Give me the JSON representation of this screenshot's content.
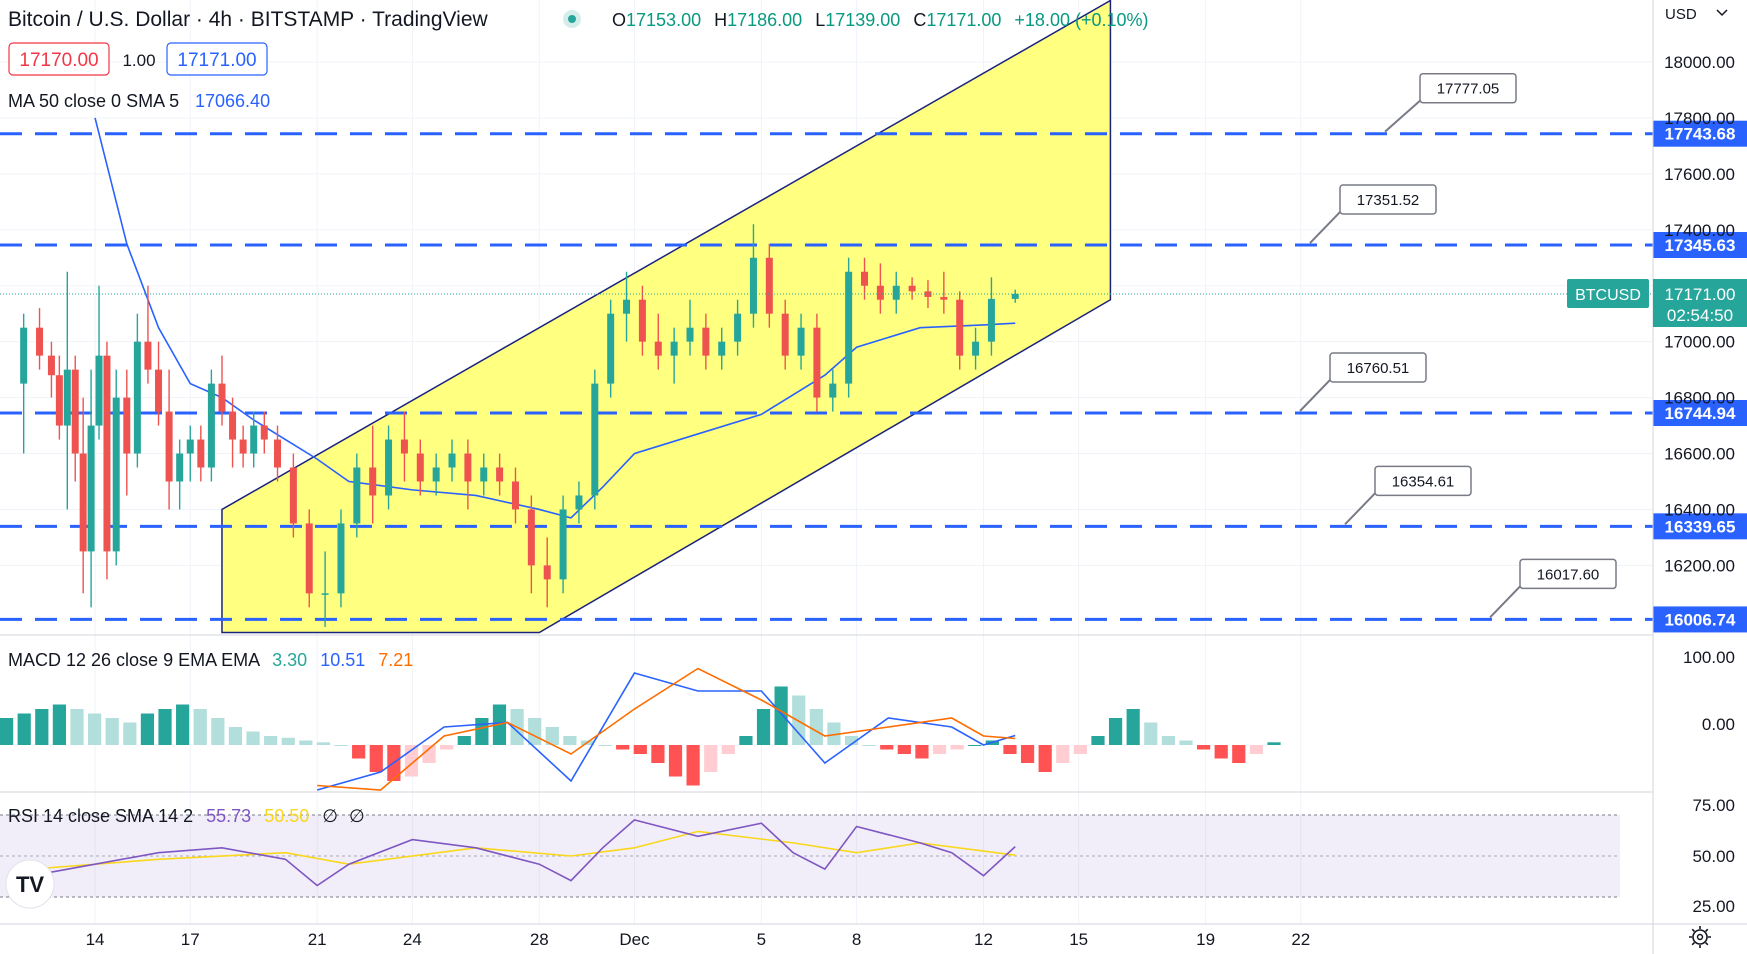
{
  "header": {
    "title": "Bitcoin / U.S. Dollar · 4h · BITSTAMP · TradingView",
    "ohlc": {
      "o_label": "O",
      "o": "17153.00",
      "h_label": "H",
      "h": "17186.00",
      "l_label": "L",
      "l": "17139.00",
      "c_label": "C",
      "c": "17171.00",
      "change": "+18.00 (+0.10%)"
    },
    "sell_price": "17170.00",
    "spread": "1.00",
    "buy_price": "17171.00",
    "currency": "USD",
    "currency_icon": "chevron-down-icon"
  },
  "indicators": {
    "ma": {
      "label": "MA 50 close 0 SMA 5",
      "value": "17066.40"
    },
    "macd": {
      "label": "MACD 12 26 close 9 EMA EMA",
      "hist": "3.30",
      "macd": "10.51",
      "signal": "7.21"
    },
    "rsi": {
      "label": "RSI 14 close SMA 14 2",
      "rsi": "55.73",
      "rsi_ma": "50.50",
      "extra1": "∅",
      "extra2": "∅"
    }
  },
  "price_axis": {
    "ticks": [
      "18000.00",
      "17800.00",
      "17600.00",
      "17400.00",
      "17200.00",
      "17000.00",
      "16800.00",
      "16600.00",
      "16400.00",
      "16200.00"
    ],
    "current_symbol": "BTCUSD",
    "current_price": "17171.00",
    "countdown": "02:54:50"
  },
  "macd_axis": {
    "ticks": [
      "100.00",
      "0.00"
    ]
  },
  "rsi_axis": {
    "ticks": [
      "75.00",
      "50.00",
      "25.00"
    ]
  },
  "time_axis": {
    "labels": [
      "14",
      "17",
      "21",
      "24",
      "28",
      "Dec",
      "5",
      "8",
      "12",
      "15",
      "19",
      "22"
    ]
  },
  "levels": [
    {
      "price": "17743.68",
      "annotation": "17777.05"
    },
    {
      "price": "17345.63",
      "annotation": "17351.52"
    },
    {
      "price": "16744.94",
      "annotation": "16760.51"
    },
    {
      "price": "16339.65",
      "annotation": "16354.61"
    },
    {
      "price": "16006.74",
      "annotation": "16017.60"
    }
  ],
  "colors": {
    "up": "#26a69a",
    "down": "#ef5350",
    "level": "#2962ff",
    "channel_fill": "#ffff80",
    "ma": "#2962ff",
    "macd": "#2962ff",
    "signal": "#ff6d00",
    "rsi": "#7e57c2",
    "rsi_ma": "#f9d71c"
  },
  "logo": "TV",
  "settings_icon": "gear-icon",
  "chart_data": {
    "type": "candlestick",
    "title": "Bitcoin / U.S. Dollar · 4h · BITSTAMP · TradingView",
    "ylim": [
      15960,
      18220
    ],
    "x_range": [
      "Nov 12",
      "Dec 23"
    ],
    "grid": true,
    "candles": [
      [
        "Nov 12",
        16850,
        17100,
        16600,
        17050
      ],
      [
        "Nov 12",
        17050,
        17120,
        16900,
        16950
      ],
      [
        "Nov 13",
        16950,
        17000,
        16800,
        16880
      ],
      [
        "Nov 13",
        16880,
        16950,
        16650,
        16700
      ],
      [
        "Nov 13",
        16700,
        17250,
        16400,
        16900
      ],
      [
        "Nov 13",
        16900,
        16950,
        16500,
        16600
      ],
      [
        "Nov 14",
        16600,
        16800,
        16100,
        16250
      ],
      [
        "Nov 14",
        16250,
        16900,
        16050,
        16700
      ],
      [
        "Nov 14",
        16700,
        17200,
        16650,
        16950
      ],
      [
        "Nov 14",
        16950,
        17000,
        16150,
        16250
      ],
      [
        "Nov 15",
        16250,
        16900,
        16200,
        16800
      ],
      [
        "Nov 15",
        16800,
        16900,
        16450,
        16600
      ],
      [
        "Nov 15",
        16600,
        17100,
        16550,
        17000
      ],
      [
        "Nov 16",
        17000,
        17200,
        16850,
        16900
      ],
      [
        "Nov 16",
        16900,
        17000,
        16700,
        16750
      ],
      [
        "Nov 16",
        16750,
        16900,
        16400,
        16500
      ],
      [
        "Nov 17",
        16500,
        16650,
        16400,
        16600
      ],
      [
        "Nov 17",
        16600,
        16700,
        16500,
        16650
      ],
      [
        "Nov 17",
        16650,
        16700,
        16500,
        16550
      ],
      [
        "Nov 18",
        16550,
        16900,
        16500,
        16850
      ],
      [
        "Nov 18",
        16850,
        16950,
        16700,
        16750
      ],
      [
        "Nov 18",
        16750,
        16800,
        16550,
        16650
      ],
      [
        "Nov 19",
        16650,
        16700,
        16550,
        16600
      ],
      [
        "Nov 19",
        16600,
        16750,
        16550,
        16700
      ],
      [
        "Nov 19",
        16700,
        16750,
        16600,
        16650
      ],
      [
        "Nov 20",
        16650,
        16700,
        16500,
        16550
      ],
      [
        "Nov 20",
        16550,
        16600,
        16300,
        16350
      ],
      [
        "Nov 21",
        16350,
        16400,
        16050,
        16100
      ],
      [
        "Nov 21",
        16100,
        16250,
        15980,
        16100
      ],
      [
        "Nov 22",
        16100,
        16400,
        16050,
        16350
      ],
      [
        "Nov 22",
        16350,
        16600,
        16300,
        16550
      ],
      [
        "Nov 23",
        16550,
        16700,
        16350,
        16450
      ],
      [
        "Nov 23",
        16450,
        16700,
        16400,
        16650
      ],
      [
        "Nov 24",
        16650,
        16750,
        16500,
        16600
      ],
      [
        "Nov 24",
        16600,
        16650,
        16450,
        16500
      ],
      [
        "Nov 25",
        16500,
        16600,
        16450,
        16550
      ],
      [
        "Nov 25",
        16550,
        16650,
        16500,
        16600
      ],
      [
        "Nov 26",
        16600,
        16650,
        16400,
        16500
      ],
      [
        "Nov 26",
        16500,
        16600,
        16450,
        16550
      ],
      [
        "Nov 27",
        16550,
        16600,
        16450,
        16500
      ],
      [
        "Nov 27",
        16500,
        16550,
        16350,
        16400
      ],
      [
        "Nov 28",
        16400,
        16450,
        16100,
        16200
      ],
      [
        "Nov 28",
        16200,
        16300,
        16050,
        16150
      ],
      [
        "Nov 29",
        16150,
        16450,
        16100,
        16400
      ],
      [
        "Nov 29",
        16400,
        16500,
        16350,
        16450
      ],
      [
        "Nov 30",
        16450,
        16900,
        16400,
        16850
      ],
      [
        "Nov 30",
        16850,
        17150,
        16800,
        17100
      ],
      [
        "Dec 1",
        17100,
        17250,
        17000,
        17150
      ],
      [
        "Dec 1",
        17150,
        17200,
        16950,
        17000
      ],
      [
        "Dec 2",
        17000,
        17100,
        16900,
        16950
      ],
      [
        "Dec 2",
        16950,
        17050,
        16850,
        17000
      ],
      [
        "Dec 3",
        17000,
        17150,
        16950,
        17050
      ],
      [
        "Dec 3",
        17050,
        17100,
        16900,
        16950
      ],
      [
        "Dec 4",
        16950,
        17050,
        16900,
        17000
      ],
      [
        "Dec 4",
        17000,
        17150,
        16950,
        17100
      ],
      [
        "Dec 5",
        17100,
        17420,
        17050,
        17300
      ],
      [
        "Dec 5",
        17300,
        17350,
        17050,
        17100
      ],
      [
        "Dec 6",
        17100,
        17150,
        16900,
        16950
      ],
      [
        "Dec 6",
        16950,
        17100,
        16900,
        17050
      ],
      [
        "Dec 7",
        17050,
        17100,
        16750,
        16800
      ],
      [
        "Dec 7",
        16800,
        16900,
        16750,
        16850
      ],
      [
        "Dec 8",
        16850,
        17300,
        16800,
        17250
      ],
      [
        "Dec 8",
        17250,
        17300,
        17150,
        17200
      ],
      [
        "Dec 9",
        17200,
        17280,
        17100,
        17150
      ],
      [
        "Dec 9",
        17150,
        17250,
        17100,
        17200
      ],
      [
        "Dec 10",
        17200,
        17230,
        17150,
        17180
      ],
      [
        "Dec 10",
        17180,
        17220,
        17120,
        17160
      ],
      [
        "Dec 11",
        17160,
        17250,
        17100,
        17150
      ],
      [
        "Dec 11",
        17150,
        17180,
        16900,
        16950
      ],
      [
        "Dec 12",
        16950,
        17050,
        16900,
        17000
      ],
      [
        "Dec 12",
        17000,
        17230,
        16950,
        17153
      ],
      [
        "Dec 13",
        17153,
        17186,
        17139,
        17171
      ]
    ],
    "ma50": [
      [
        "Nov 14",
        17800
      ],
      [
        "Nov 15",
        17350
      ],
      [
        "Nov 16",
        17050
      ],
      [
        "Nov 17",
        16850
      ],
      [
        "Nov 18",
        16800
      ],
      [
        "Nov 19",
        16720
      ],
      [
        "Nov 20",
        16650
      ],
      [
        "Nov 21",
        16580
      ],
      [
        "Nov 22",
        16500
      ],
      [
        "Nov 24",
        16470
      ],
      [
        "Nov 26",
        16450
      ],
      [
        "Nov 28",
        16400
      ],
      [
        "Nov 29",
        16370
      ],
      [
        "Nov 30",
        16480
      ],
      [
        "Dec 1",
        16600
      ],
      [
        "Dec 3",
        16670
      ],
      [
        "Dec 5",
        16740
      ],
      [
        "Dec 7",
        16880
      ],
      [
        "Dec 8",
        16980
      ],
      [
        "Dec 10",
        17050
      ],
      [
        "Dec 12",
        17060
      ],
      [
        "Dec 13",
        17066
      ]
    ],
    "channel": {
      "upper": [
        [
          "Nov 18",
          16400
        ],
        [
          "Dec 16",
          18220
        ]
      ],
      "lower": [
        [
          "Nov 28",
          15960
        ],
        [
          "Dec 16",
          17150
        ]
      ]
    },
    "macd": {
      "hist": [
        [
          30,
          35,
          40,
          45,
          40,
          35,
          30,
          25,
          35,
          40,
          45,
          40,
          30,
          20,
          15,
          10,
          8,
          5,
          3,
          0,
          -15,
          -30,
          -40,
          -35,
          -20,
          -5,
          10,
          30,
          45,
          40,
          30,
          20,
          10,
          5,
          0,
          -5,
          -10,
          -20,
          -35,
          -45,
          -30,
          -10,
          10,
          40,
          65,
          55,
          40,
          25,
          10,
          0,
          -5,
          -10,
          -15,
          -10,
          -5,
          0,
          5,
          -10,
          -20,
          -30,
          -20,
          -10,
          10,
          30,
          40,
          25,
          10,
          5,
          -5,
          -15,
          -20,
          -10,
          3
        ]
      ],
      "macd_line": [
        [
          "Nov 21",
          -60
        ],
        [
          "Nov 23",
          -30
        ],
        [
          "Nov 25",
          20
        ],
        [
          "Nov 27",
          25
        ],
        [
          "Nov 29",
          -40
        ],
        [
          "Dec 1",
          80
        ],
        [
          "Dec 3",
          60
        ],
        [
          "Dec 5",
          60
        ],
        [
          "Dec 7",
          -20
        ],
        [
          "Dec 9",
          30
        ],
        [
          "Dec 11",
          20
        ],
        [
          "Dec 12",
          0
        ],
        [
          "Dec 13",
          10.51
        ]
      ],
      "signal_line": [
        [
          "Nov 21",
          -45
        ],
        [
          "Nov 23",
          -50
        ],
        [
          "Nov 25",
          10
        ],
        [
          "Nov 27",
          25
        ],
        [
          "Nov 29",
          -10
        ],
        [
          "Dec 1",
          40
        ],
        [
          "Dec 3",
          85
        ],
        [
          "Dec 5",
          50
        ],
        [
          "Dec 7",
          10
        ],
        [
          "Dec 9",
          20
        ],
        [
          "Dec 11",
          30
        ],
        [
          "Dec 12",
          10
        ],
        [
          "Dec 13",
          7.21
        ]
      ]
    },
    "rsi": {
      "rsi_line": [
        [
          "Nov 12",
          38
        ],
        [
          "Nov 14",
          45
        ],
        [
          "Nov 16",
          52
        ],
        [
          "Nov 18",
          55
        ],
        [
          "Nov 20",
          48
        ],
        [
          "Nov 21",
          32
        ],
        [
          "Nov 22",
          45
        ],
        [
          "Nov 24",
          60
        ],
        [
          "Nov 26",
          55
        ],
        [
          "Nov 28",
          45
        ],
        [
          "Nov 29",
          35
        ],
        [
          "Nov 30",
          55
        ],
        [
          "Dec 1",
          72
        ],
        [
          "Dec 3",
          62
        ],
        [
          "Dec 5",
          70
        ],
        [
          "Dec 6",
          52
        ],
        [
          "Dec 7",
          42
        ],
        [
          "Dec 8",
          68
        ],
        [
          "Dec 10",
          58
        ],
        [
          "Dec 11",
          52
        ],
        [
          "Dec 12",
          38
        ],
        [
          "Dec 13",
          55.73
        ]
      ],
      "rsi_ma": [
        [
          "Nov 12",
          42
        ],
        [
          "Nov 16",
          48
        ],
        [
          "Nov 20",
          52
        ],
        [
          "Nov 22",
          45
        ],
        [
          "Nov 26",
          55
        ],
        [
          "Nov 29",
          50
        ],
        [
          "Dec 1",
          55
        ],
        [
          "Dec 3",
          65
        ],
        [
          "Dec 6",
          58
        ],
        [
          "Dec 8",
          52
        ],
        [
          "Dec 10",
          58
        ],
        [
          "Dec 12",
          53
        ],
        [
          "Dec 13",
          50.5
        ]
      ]
    }
  }
}
